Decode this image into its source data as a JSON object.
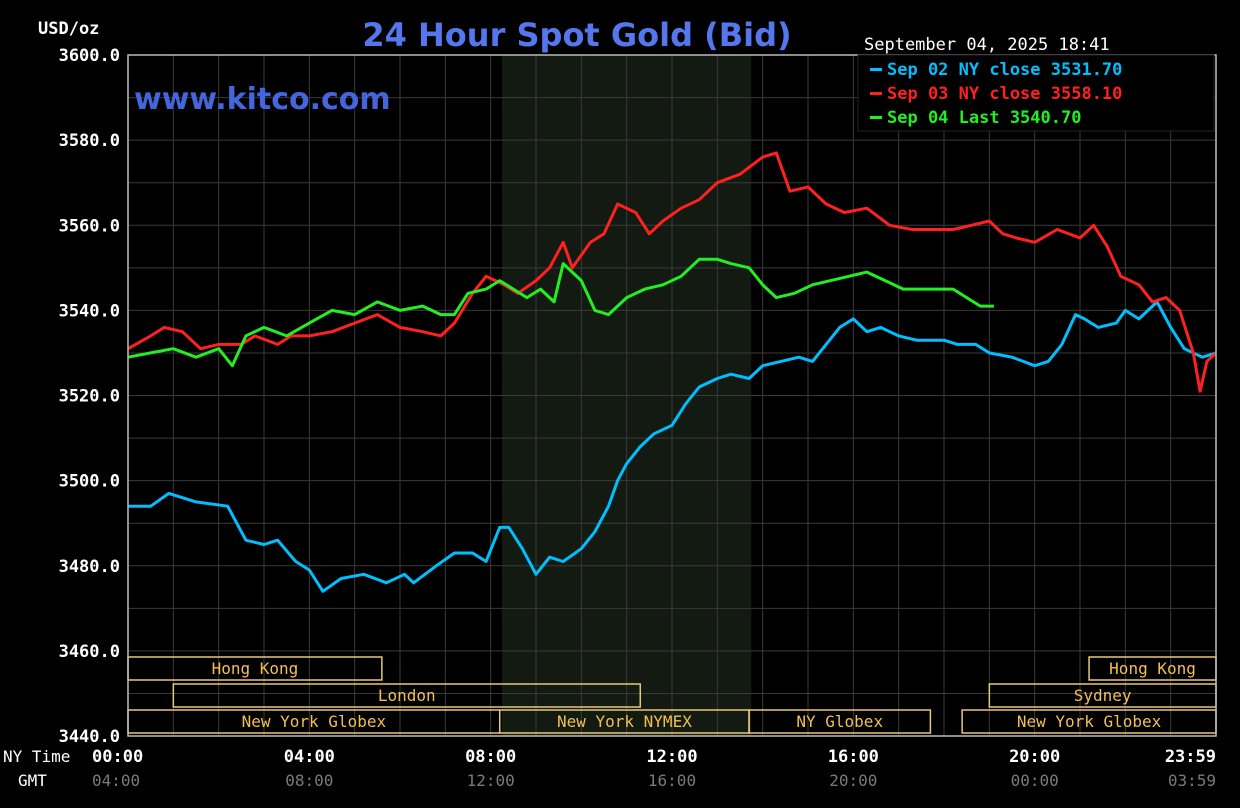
{
  "chart_data": {
    "type": "line",
    "title": "24 Hour Spot Gold (Bid)",
    "watermark": "www.kitco.com",
    "timestamp": "September 04, 2025 18:41",
    "ylabel": "USD/oz",
    "ylim": [
      3440,
      3600
    ],
    "yticks": [
      "3600.0",
      "3580.0",
      "3560.0",
      "3540.0",
      "3520.0",
      "3500.0",
      "3480.0",
      "3460.0",
      "3440.0"
    ],
    "xlim": [
      0,
      24
    ],
    "x_row_label_ny": "NY Time",
    "x_row_label_gmt": "GMT",
    "xticks_ny": [
      "00:00",
      "04:00",
      "08:00",
      "12:00",
      "16:00",
      "20:00",
      "23:59"
    ],
    "xticks_gmt": [
      "04:00",
      "08:00",
      "12:00",
      "16:00",
      "20:00",
      "00:00",
      "03:59"
    ],
    "grid": true,
    "legend": {
      "position": "top-right",
      "entries": [
        {
          "label": "Sep 02 NY close 3531.70",
          "color": "#00bfff"
        },
        {
          "label": "Sep 03 NY close 3558.10",
          "color": "#ff2020"
        },
        {
          "label": "Sep 04 Last 3540.70",
          "color": "#22ee22"
        }
      ]
    },
    "highlight_band": {
      "start": 8.25,
      "end": 13.75
    },
    "sessions": [
      {
        "label": "Hong Kong",
        "start": 0,
        "end": 5.6,
        "row": 0
      },
      {
        "label": "Hong Kong",
        "start": 21.2,
        "end": 24,
        "row": 0
      },
      {
        "label": "London",
        "start": 1.0,
        "end": 11.3,
        "row": 1
      },
      {
        "label": "Sydney",
        "start": 19.0,
        "end": 24,
        "row": 1
      },
      {
        "label": "New York Globex",
        "start": 0,
        "end": 8.2,
        "row": 2
      },
      {
        "label": "New York NYMEX",
        "start": 8.2,
        "end": 13.7,
        "row": 2
      },
      {
        "label": "NY Globex",
        "start": 13.7,
        "end": 17.7,
        "row": 2
      },
      {
        "label": "New York Globex",
        "start": 18.4,
        "end": 24,
        "row": 2
      }
    ],
    "series": [
      {
        "color": "#00bfff",
        "points": [
          [
            0,
            3494
          ],
          [
            0.5,
            3494
          ],
          [
            0.9,
            3497
          ],
          [
            1.5,
            3495
          ],
          [
            2.2,
            3494
          ],
          [
            2.6,
            3486
          ],
          [
            3.0,
            3485
          ],
          [
            3.3,
            3486
          ],
          [
            3.7,
            3481
          ],
          [
            4.0,
            3479
          ],
          [
            4.3,
            3474
          ],
          [
            4.7,
            3477
          ],
          [
            5.2,
            3478
          ],
          [
            5.7,
            3476
          ],
          [
            6.1,
            3478
          ],
          [
            6.3,
            3476
          ],
          [
            6.8,
            3480
          ],
          [
            7.2,
            3483
          ],
          [
            7.6,
            3483
          ],
          [
            7.9,
            3481
          ],
          [
            8.2,
            3489
          ],
          [
            8.4,
            3489
          ],
          [
            8.7,
            3484
          ],
          [
            9.0,
            3478
          ],
          [
            9.3,
            3482
          ],
          [
            9.6,
            3481
          ],
          [
            10.0,
            3484
          ],
          [
            10.3,
            3488
          ],
          [
            10.6,
            3494
          ],
          [
            10.8,
            3500
          ],
          [
            11.0,
            3504
          ],
          [
            11.3,
            3508
          ],
          [
            11.6,
            3511
          ],
          [
            12.0,
            3513
          ],
          [
            12.3,
            3518
          ],
          [
            12.6,
            3522
          ],
          [
            13.0,
            3524
          ],
          [
            13.3,
            3525
          ],
          [
            13.7,
            3524
          ],
          [
            14.0,
            3527
          ],
          [
            14.4,
            3528
          ],
          [
            14.8,
            3529
          ],
          [
            15.1,
            3528
          ],
          [
            15.4,
            3532
          ],
          [
            15.7,
            3536
          ],
          [
            16.0,
            3538
          ],
          [
            16.3,
            3535
          ],
          [
            16.6,
            3536
          ],
          [
            17.0,
            3534
          ],
          [
            17.4,
            3533
          ],
          [
            18.0,
            3533
          ],
          [
            18.3,
            3532
          ],
          [
            18.7,
            3532
          ],
          [
            19.0,
            3530
          ],
          [
            19.5,
            3529
          ],
          [
            20.0,
            3527
          ],
          [
            20.3,
            3528
          ],
          [
            20.6,
            3532
          ],
          [
            20.9,
            3539
          ],
          [
            21.1,
            3538
          ],
          [
            21.4,
            3536
          ],
          [
            21.8,
            3537
          ],
          [
            22.0,
            3540
          ],
          [
            22.3,
            3538
          ],
          [
            22.7,
            3542
          ],
          [
            23.0,
            3536
          ],
          [
            23.3,
            3531
          ],
          [
            23.7,
            3529
          ],
          [
            24.0,
            3530
          ]
        ]
      },
      {
        "color": "#ff2020",
        "points": [
          [
            0,
            3531
          ],
          [
            0.5,
            3534
          ],
          [
            0.8,
            3536
          ],
          [
            1.2,
            3535
          ],
          [
            1.6,
            3531
          ],
          [
            2.0,
            3532
          ],
          [
            2.5,
            3532
          ],
          [
            2.8,
            3534
          ],
          [
            3.3,
            3532
          ],
          [
            3.6,
            3534
          ],
          [
            4.0,
            3534
          ],
          [
            4.5,
            3535
          ],
          [
            5.0,
            3537
          ],
          [
            5.5,
            3539
          ],
          [
            6.0,
            3536
          ],
          [
            6.5,
            3535
          ],
          [
            6.9,
            3534
          ],
          [
            7.2,
            3537
          ],
          [
            7.6,
            3544
          ],
          [
            7.9,
            3548
          ],
          [
            8.3,
            3546
          ],
          [
            8.6,
            3544
          ],
          [
            9.0,
            3547
          ],
          [
            9.3,
            3550
          ],
          [
            9.6,
            3556
          ],
          [
            9.8,
            3550
          ],
          [
            10.2,
            3556
          ],
          [
            10.5,
            3558
          ],
          [
            10.8,
            3565
          ],
          [
            11.2,
            3563
          ],
          [
            11.5,
            3558
          ],
          [
            11.8,
            3561
          ],
          [
            12.2,
            3564
          ],
          [
            12.6,
            3566
          ],
          [
            13.0,
            3570
          ],
          [
            13.5,
            3572
          ],
          [
            14.0,
            3576
          ],
          [
            14.3,
            3577
          ],
          [
            14.6,
            3568
          ],
          [
            15.0,
            3569
          ],
          [
            15.4,
            3565
          ],
          [
            15.8,
            3563
          ],
          [
            16.3,
            3564
          ],
          [
            16.8,
            3560
          ],
          [
            17.3,
            3559
          ],
          [
            17.8,
            3559
          ],
          [
            18.2,
            3559
          ],
          [
            18.6,
            3560
          ],
          [
            19.0,
            3561
          ],
          [
            19.3,
            3558
          ],
          [
            19.6,
            3557
          ],
          [
            20.0,
            3556
          ],
          [
            20.5,
            3559
          ],
          [
            21.0,
            3557
          ],
          [
            21.3,
            3560
          ],
          [
            21.6,
            3555
          ],
          [
            21.9,
            3548
          ],
          [
            22.3,
            3546
          ],
          [
            22.6,
            3542
          ],
          [
            22.9,
            3543
          ],
          [
            23.2,
            3540
          ],
          [
            23.5,
            3530
          ],
          [
            23.65,
            3521
          ],
          [
            23.8,
            3528
          ],
          [
            24.0,
            3530
          ]
        ]
      },
      {
        "color": "#22ee22",
        "points": [
          [
            0,
            3529
          ],
          [
            0.5,
            3530
          ],
          [
            1.0,
            3531
          ],
          [
            1.5,
            3529
          ],
          [
            2.0,
            3531
          ],
          [
            2.3,
            3527
          ],
          [
            2.6,
            3534
          ],
          [
            3.0,
            3536
          ],
          [
            3.5,
            3534
          ],
          [
            4.0,
            3537
          ],
          [
            4.5,
            3540
          ],
          [
            5.0,
            3539
          ],
          [
            5.5,
            3542
          ],
          [
            6.0,
            3540
          ],
          [
            6.5,
            3541
          ],
          [
            6.9,
            3539
          ],
          [
            7.2,
            3539
          ],
          [
            7.5,
            3544
          ],
          [
            7.9,
            3545
          ],
          [
            8.2,
            3547
          ],
          [
            8.5,
            3545
          ],
          [
            8.8,
            3543
          ],
          [
            9.1,
            3545
          ],
          [
            9.4,
            3542
          ],
          [
            9.6,
            3551
          ],
          [
            10.0,
            3547
          ],
          [
            10.3,
            3540
          ],
          [
            10.6,
            3539
          ],
          [
            11.0,
            3543
          ],
          [
            11.4,
            3545
          ],
          [
            11.8,
            3546
          ],
          [
            12.2,
            3548
          ],
          [
            12.6,
            3552
          ],
          [
            13.0,
            3552
          ],
          [
            13.3,
            3551
          ],
          [
            13.7,
            3550
          ],
          [
            14.0,
            3546
          ],
          [
            14.3,
            3543
          ],
          [
            14.7,
            3544
          ],
          [
            15.1,
            3546
          ],
          [
            15.5,
            3547
          ],
          [
            15.9,
            3548
          ],
          [
            16.3,
            3549
          ],
          [
            16.7,
            3547
          ],
          [
            17.1,
            3545
          ],
          [
            17.5,
            3545
          ],
          [
            17.9,
            3545
          ],
          [
            18.2,
            3545
          ],
          [
            18.5,
            3543
          ],
          [
            18.8,
            3541
          ],
          [
            19.1,
            3541
          ]
        ]
      }
    ]
  }
}
